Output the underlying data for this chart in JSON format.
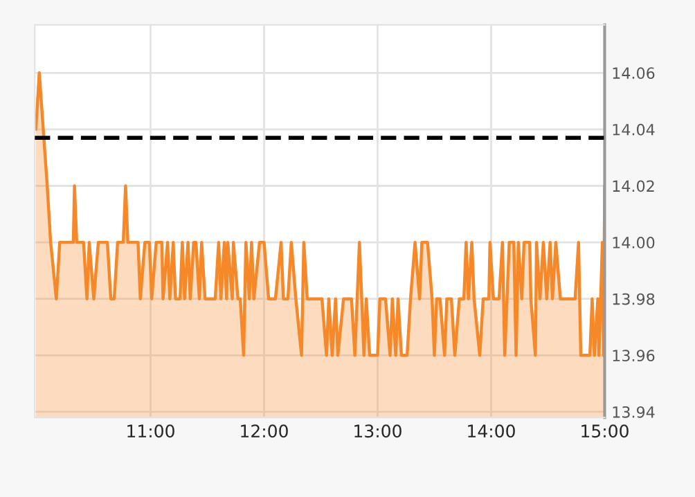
{
  "chart_data": {
    "type": "area",
    "x": [
      9.99,
      10.02,
      10.09,
      10.12,
      10.17,
      10.2,
      10.32,
      10.33,
      10.35,
      10.41,
      10.44,
      10.46,
      10.5,
      10.54,
      10.62,
      10.65,
      10.68,
      10.71,
      10.76,
      10.78,
      10.8,
      10.89,
      10.91,
      10.95,
      10.99,
      11.01,
      11.05,
      11.1,
      11.11,
      11.15,
      11.17,
      11.2,
      11.22,
      11.26,
      11.28,
      11.3,
      11.33,
      11.35,
      11.38,
      11.4,
      11.43,
      11.45,
      11.48,
      11.57,
      11.6,
      11.62,
      11.65,
      11.67,
      11.68,
      11.72,
      11.73,
      11.77,
      11.79,
      11.82,
      11.84,
      11.87,
      11.89,
      11.91,
      11.96,
      12.0,
      12.04,
      12.07,
      12.1,
      12.15,
      12.17,
      12.21,
      12.24,
      12.28,
      12.33,
      12.35,
      12.38,
      12.51,
      12.55,
      12.57,
      12.6,
      12.63,
      12.65,
      12.7,
      12.77,
      12.8,
      12.84,
      12.88,
      12.9,
      12.93,
      13.0,
      13.02,
      13.07,
      13.11,
      13.13,
      13.16,
      13.18,
      13.21,
      13.26,
      13.29,
      13.33,
      13.37,
      13.39,
      13.44,
      13.48,
      13.5,
      13.52,
      13.55,
      13.59,
      13.61,
      13.65,
      13.68,
      13.72,
      13.76,
      13.78,
      13.8,
      13.83,
      13.85,
      13.9,
      13.93,
      13.98,
      13.99,
      14.02,
      14.07,
      14.1,
      14.12,
      14.16,
      14.2,
      14.22,
      14.24,
      14.27,
      14.29,
      14.34,
      14.35,
      14.39,
      14.4,
      14.43,
      14.46,
      14.49,
      14.52,
      14.54,
      14.57,
      14.61,
      14.74,
      14.77,
      14.79,
      14.87,
      14.89,
      14.91,
      14.94,
      14.95,
      14.98,
      14.99,
      15.0
    ],
    "series": [
      {
        "color": "#f5892a",
        "values": [
          14.04,
          14.06,
          14.02,
          14.0,
          13.98,
          14.0,
          14.0,
          14.02,
          14.0,
          14.0,
          13.98,
          14.0,
          13.98,
          14.0,
          14.0,
          13.98,
          13.98,
          14.0,
          14.0,
          14.02,
          14.0,
          14.0,
          13.98,
          14.0,
          14.0,
          13.98,
          14.0,
          14.0,
          13.98,
          14.0,
          13.98,
          14.0,
          13.98,
          13.98,
          14.0,
          13.98,
          14.0,
          13.98,
          14.0,
          14.0,
          13.98,
          14.0,
          13.98,
          13.98,
          14.0,
          13.98,
          14.0,
          13.98,
          14.0,
          13.98,
          14.0,
          13.98,
          13.98,
          13.96,
          14.0,
          13.98,
          14.0,
          13.98,
          14.0,
          14.0,
          13.98,
          13.98,
          13.98,
          14.0,
          13.98,
          13.98,
          14.0,
          13.98,
          13.96,
          14.0,
          13.98,
          13.98,
          13.96,
          13.98,
          13.96,
          13.98,
          13.96,
          13.98,
          13.98,
          13.96,
          14.0,
          13.96,
          13.98,
          13.96,
          13.96,
          13.98,
          13.98,
          13.96,
          13.98,
          13.96,
          13.98,
          13.96,
          13.96,
          13.98,
          14.0,
          13.98,
          14.0,
          14.0,
          13.98,
          13.96,
          13.98,
          13.98,
          13.96,
          13.98,
          13.98,
          13.96,
          13.98,
          13.98,
          14.0,
          13.98,
          14.0,
          13.98,
          13.96,
          13.98,
          13.98,
          14.0,
          13.98,
          13.98,
          14.0,
          13.96,
          14.0,
          14.0,
          13.96,
          14.0,
          13.98,
          14.0,
          14.0,
          13.98,
          13.96,
          14.0,
          13.98,
          14.0,
          13.98,
          14.0,
          13.98,
          14.0,
          13.98,
          13.98,
          14.0,
          13.96,
          13.96,
          13.98,
          13.96,
          13.98,
          13.96,
          14.0,
          13.96,
          14.02
        ]
      }
    ],
    "xlim": [
      9.98,
      15.0
    ],
    "xticks": [
      {
        "value": 11,
        "label": "11:00"
      },
      {
        "value": 12,
        "label": "12:00"
      },
      {
        "value": 13,
        "label": "13:00"
      },
      {
        "value": 14,
        "label": "14:00"
      },
      {
        "value": 15,
        "label": "15:00"
      }
    ],
    "ylim": [
      13.938,
      14.077
    ],
    "yticks": [
      {
        "value": 13.94,
        "label": "13.94"
      },
      {
        "value": 13.96,
        "label": "13.96"
      },
      {
        "value": 13.98,
        "label": "13.98"
      },
      {
        "value": 14.0,
        "label": "14.00"
      },
      {
        "value": 14.02,
        "label": "14.02"
      },
      {
        "value": 14.04,
        "label": "14.04"
      },
      {
        "value": 14.06,
        "label": "14.06"
      }
    ],
    "ref_lines": [
      {
        "axis": "y",
        "value": 14.037,
        "color": "#000000",
        "line_style": "dashed"
      }
    ],
    "grid": true,
    "legend": false
  }
}
